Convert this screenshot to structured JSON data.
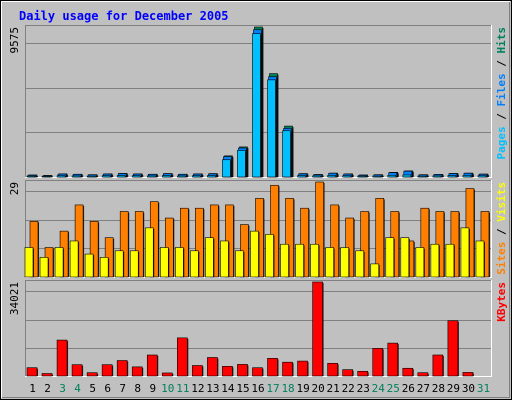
{
  "chart_data": {
    "type": "bar",
    "title": "Daily usage for December 2005",
    "days": [
      "1",
      "2",
      "3",
      "4",
      "5",
      "6",
      "7",
      "8",
      "9",
      "10",
      "11",
      "12",
      "13",
      "14",
      "15",
      "16",
      "17",
      "18",
      "19",
      "20",
      "21",
      "22",
      "23",
      "24",
      "25",
      "26",
      "27",
      "28",
      "29",
      "30",
      "31"
    ],
    "weekend_days": [
      "3",
      "4",
      "10",
      "11",
      "17",
      "18",
      "24",
      "25",
      "31"
    ],
    "panels": [
      {
        "id": "hits",
        "ymax_label": "9575",
        "ylim": [
          0,
          9575
        ],
        "legend": [
          {
            "text": "Pages",
            "color": "#00C0FF"
          },
          {
            "text": " / ",
            "color": "#000000"
          },
          {
            "text": "Files",
            "color": "#0080FF"
          },
          {
            "text": " / ",
            "color": "#000000"
          },
          {
            "text": "Hits",
            "color": "#00805C"
          }
        ],
        "series": [
          {
            "name": "Hits",
            "color": "#00805C",
            "values": [
              130,
              100,
              200,
              180,
              150,
              200,
              230,
              200,
              180,
              220,
              180,
              200,
              220,
              1350,
              1920,
              9575,
              6600,
              3250,
              220,
              160,
              250,
              200,
              130,
              150,
              300,
              390,
              150,
              170,
              230,
              250,
              190
            ]
          },
          {
            "name": "Files",
            "color": "#0080FF",
            "values": [
              120,
              90,
              190,
              170,
              140,
              190,
              220,
              190,
              170,
              210,
              170,
              190,
              200,
              1300,
              1850,
              9400,
              6400,
              3100,
              200,
              150,
              240,
              190,
              120,
              140,
              280,
              370,
              140,
              160,
              220,
              240,
              180
            ]
          },
          {
            "name": "Pages",
            "color": "#00C0FF",
            "values": [
              60,
              50,
              80,
              70,
              60,
              80,
              90,
              80,
              70,
              90,
              70,
              80,
              90,
              1100,
              1700,
              9150,
              6200,
              2950,
              90,
              70,
              100,
              80,
              60,
              60,
              110,
              130,
              60,
              70,
              90,
              100,
              80
            ]
          }
        ]
      },
      {
        "id": "visits",
        "ymax_label": "29",
        "ylim": [
          0,
          29
        ],
        "legend": [
          {
            "text": "Sites",
            "color": "#FF8000"
          },
          {
            "text": " / ",
            "color": "#000000"
          },
          {
            "text": "Visits",
            "color": "#FFFF00"
          }
        ],
        "series": [
          {
            "name": "Visits",
            "color": "#FF8000",
            "values": [
              17,
              9,
              14,
              22,
              17,
              12,
              20,
              20,
              23,
              18,
              21,
              21,
              22,
              22,
              16,
              24,
              28,
              24,
              21,
              29,
              22,
              18,
              20,
              24,
              20,
              11,
              21,
              20,
              20,
              27,
              20
            ]
          },
          {
            "name": "Sites",
            "color": "#FFFF00",
            "values": [
              9,
              6,
              9,
              11,
              7,
              6,
              8,
              8,
              15,
              9,
              9,
              8,
              12,
              11,
              8,
              14,
              13,
              10,
              10,
              10,
              9,
              9,
              8,
              4,
              12,
              12,
              9,
              10,
              10,
              15,
              11
            ]
          }
        ]
      },
      {
        "id": "kbytes",
        "ymax_label": "34021",
        "ylim": [
          0,
          34021
        ],
        "legend": [
          {
            "text": "KBytes",
            "color": "#FF0000"
          }
        ],
        "series": [
          {
            "name": "KBytes",
            "color": "#FF0000",
            "values": [
              3000,
              900,
              13000,
              4100,
              1200,
              4100,
              5600,
              3300,
              7600,
              1100,
              13800,
              3800,
              6700,
              3500,
              4200,
              3000,
              6400,
              5000,
              5400,
              34021,
              4600,
              2300,
              1700,
              10000,
              11900,
              2800,
              1200,
              7600,
              20000,
              1300,
              0
            ]
          }
        ]
      }
    ]
  }
}
